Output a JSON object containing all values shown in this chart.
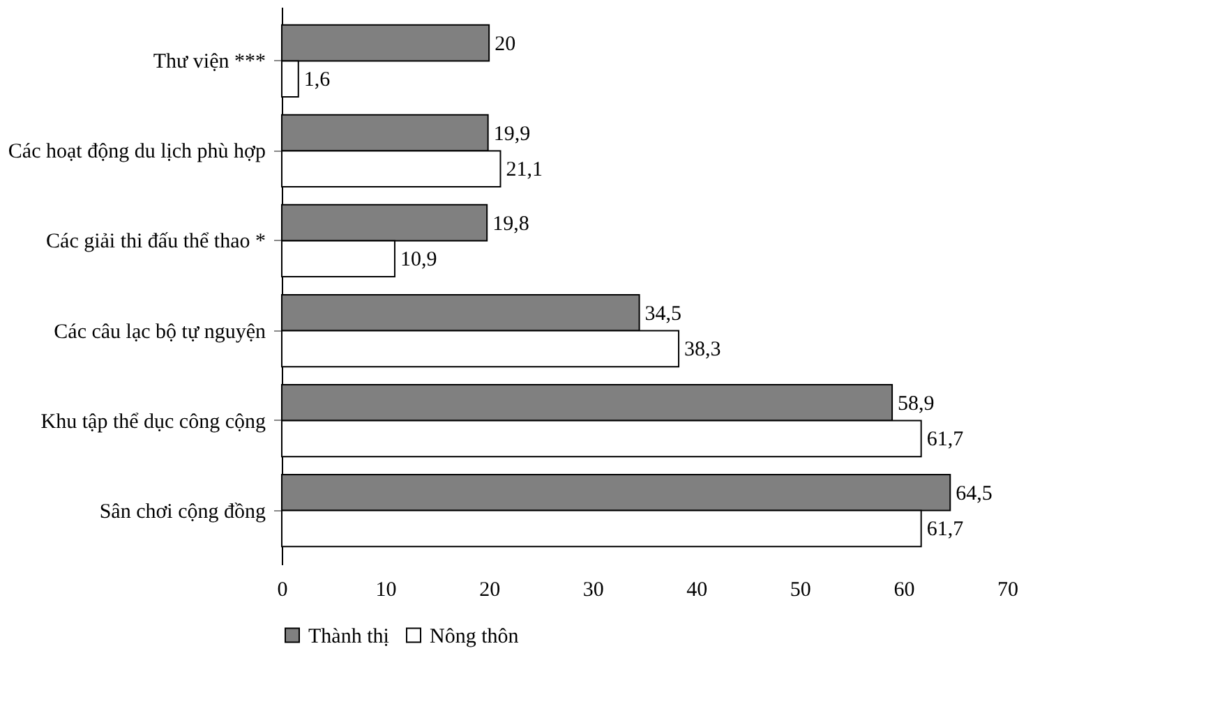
{
  "chart_data": {
    "type": "bar",
    "orientation": "horizontal",
    "categories": [
      "Thư viện ***",
      "Các hoạt động du lịch phù hợp",
      "Các giải thi đấu thể thao *",
      "Các câu lạc bộ tự nguyện",
      "Khu tập thể dục công cộng",
      "Sân chơi cộng đồng"
    ],
    "series": [
      {
        "name": "Thành thị",
        "color": "#808080",
        "values": [
          20,
          19.9,
          19.8,
          34.5,
          58.9,
          64.5
        ]
      },
      {
        "name": "Nông thôn",
        "color": "#ffffff",
        "values": [
          1.6,
          21.1,
          10.9,
          38.3,
          61.7,
          61.7
        ]
      }
    ],
    "xlim": [
      0,
      70
    ],
    "xticks": [
      0,
      10,
      20,
      30,
      40,
      50,
      60,
      70
    ],
    "value_labels": [
      [
        "20",
        "19,9",
        "19,8",
        "34,5",
        "58,9",
        "64,5"
      ],
      [
        "1,6",
        "21,1",
        "10,9",
        "38,3",
        "61,7",
        "61,7"
      ]
    ],
    "grid": false,
    "legend": "bottom"
  }
}
